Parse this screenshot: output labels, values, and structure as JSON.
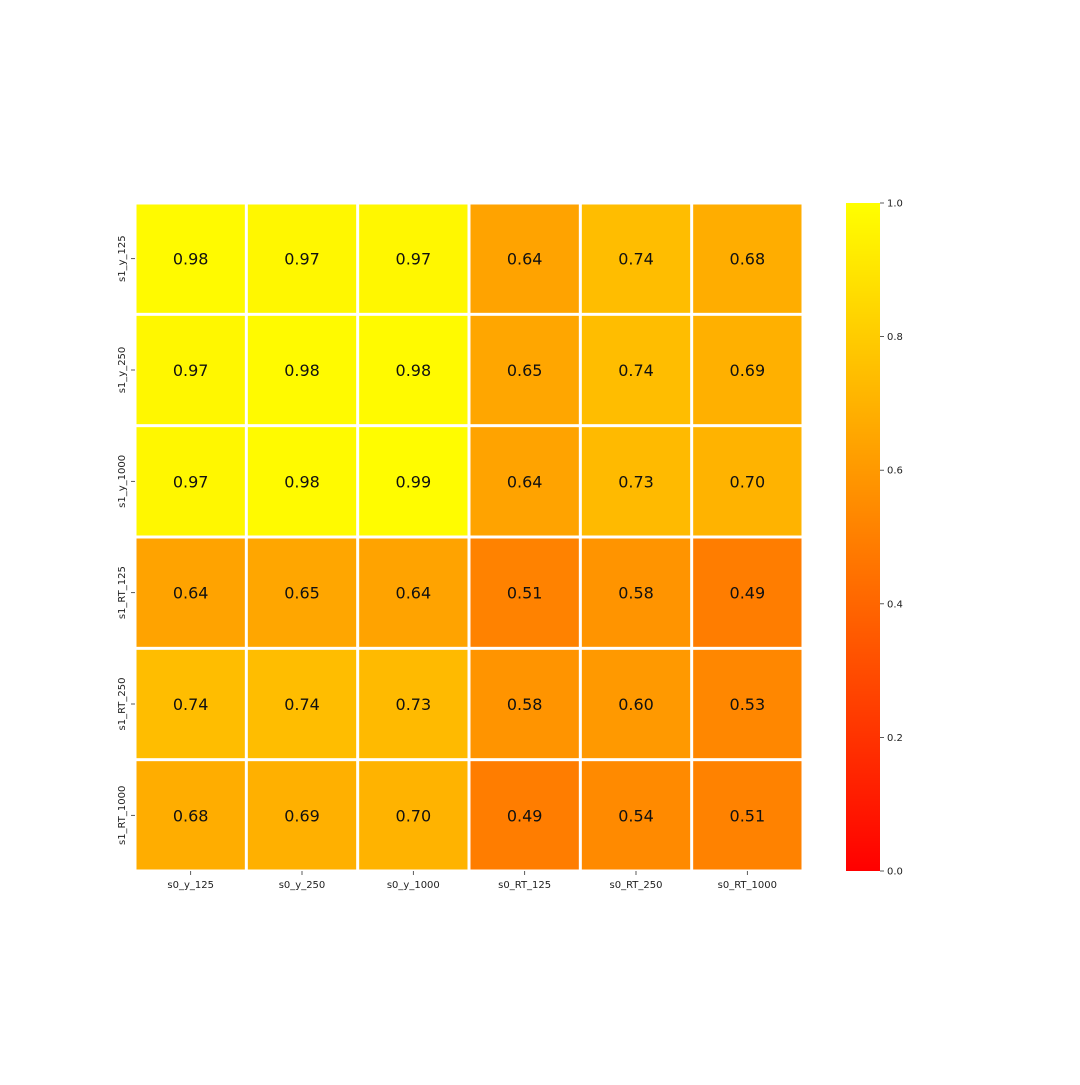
{
  "chart_data": {
    "type": "heatmap",
    "title": "",
    "xlabel": "",
    "ylabel": "",
    "x_categories": [
      "s0_y_125",
      "s0_y_250",
      "s0_y_1000",
      "s0_RT_125",
      "s0_RT_250",
      "s0_RT_1000"
    ],
    "y_categories": [
      "s1_y_125",
      "s1_y_250",
      "s1_y_1000",
      "s1_RT_125",
      "s1_RT_250",
      "s1_RT_1000"
    ],
    "values": [
      [
        0.98,
        0.97,
        0.97,
        0.64,
        0.74,
        0.68
      ],
      [
        0.97,
        0.98,
        0.98,
        0.65,
        0.74,
        0.69
      ],
      [
        0.97,
        0.98,
        0.99,
        0.64,
        0.73,
        0.7
      ],
      [
        0.64,
        0.65,
        0.64,
        0.51,
        0.58,
        0.49
      ],
      [
        0.74,
        0.74,
        0.73,
        0.58,
        0.6,
        0.53
      ],
      [
        0.68,
        0.69,
        0.7,
        0.49,
        0.54,
        0.51
      ]
    ],
    "annotations": [
      [
        "0.98",
        "0.97",
        "0.97",
        "0.64",
        "0.74",
        "0.68"
      ],
      [
        "0.97",
        "0.98",
        "0.98",
        "0.65",
        "0.74",
        "0.69"
      ],
      [
        "0.97",
        "0.98",
        "0.99",
        "0.64",
        "0.73",
        "0.70"
      ],
      [
        "0.64",
        "0.65",
        "0.64",
        "0.51",
        "0.58",
        "0.49"
      ],
      [
        "0.74",
        "0.74",
        "0.73",
        "0.58",
        "0.60",
        "0.53"
      ],
      [
        "0.68",
        "0.69",
        "0.70",
        "0.49",
        "0.54",
        "0.51"
      ]
    ],
    "colormap": {
      "name": "autumn",
      "low": "#ff0000",
      "high": "#ffff00"
    },
    "value_range": [
      0.0,
      1.0
    ],
    "colorbar": {
      "ticks": [
        0.0,
        0.2,
        0.4,
        0.6,
        0.8,
        1.0
      ],
      "tick_labels": [
        "0.0",
        "0.2",
        "0.4",
        "0.6",
        "0.8",
        "1.0"
      ],
      "placement": "right"
    },
    "grid_separator_color": "#ffffff"
  }
}
